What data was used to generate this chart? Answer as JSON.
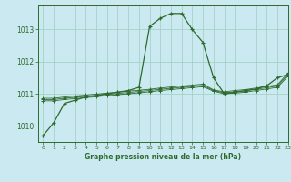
{
  "title": "Graphe pression niveau de la mer (hPa)",
  "background_color": "#cbe9f0",
  "grid_color": "#9ecfbf",
  "line_color": "#2d6a2d",
  "xlim": [
    -0.5,
    23
  ],
  "ylim": [
    1009.5,
    1013.75
  ],
  "yticks": [
    1010,
    1011,
    1012,
    1013
  ],
  "xticks": [
    0,
    1,
    2,
    3,
    4,
    5,
    6,
    7,
    8,
    9,
    10,
    11,
    12,
    13,
    14,
    15,
    16,
    17,
    18,
    19,
    20,
    21,
    22,
    23
  ],
  "series": [
    [
      1009.7,
      1010.1,
      1010.7,
      1010.8,
      1010.9,
      1010.95,
      1011.0,
      1011.05,
      1011.1,
      1011.2,
      1013.1,
      1013.35,
      1013.5,
      1013.5,
      1013.0,
      1012.6,
      1011.5,
      1011.0,
      1011.05,
      1011.1,
      1011.15,
      1011.25,
      1011.5,
      1011.6
    ],
    [
      1010.78,
      1010.78,
      1010.82,
      1010.85,
      1010.88,
      1010.91,
      1010.94,
      1010.97,
      1011.0,
      1011.03,
      1011.06,
      1011.1,
      1011.13,
      1011.16,
      1011.19,
      1011.22,
      1011.08,
      1011.0,
      1011.02,
      1011.05,
      1011.1,
      1011.15,
      1011.2,
      1011.55
    ],
    [
      1010.82,
      1010.82,
      1010.86,
      1010.89,
      1010.92,
      1010.95,
      1010.98,
      1011.01,
      1011.04,
      1011.07,
      1011.1,
      1011.14,
      1011.17,
      1011.2,
      1011.23,
      1011.26,
      1011.1,
      1011.03,
      1011.06,
      1011.09,
      1011.14,
      1011.19,
      1011.24,
      1011.6
    ],
    [
      1010.86,
      1010.86,
      1010.9,
      1010.93,
      1010.96,
      1010.99,
      1011.02,
      1011.05,
      1011.08,
      1011.11,
      1011.14,
      1011.18,
      1011.21,
      1011.24,
      1011.27,
      1011.3,
      1011.12,
      1011.06,
      1011.1,
      1011.13,
      1011.18,
      1011.23,
      1011.28,
      1011.65
    ]
  ],
  "figsize": [
    3.2,
    2.0
  ],
  "dpi": 100
}
